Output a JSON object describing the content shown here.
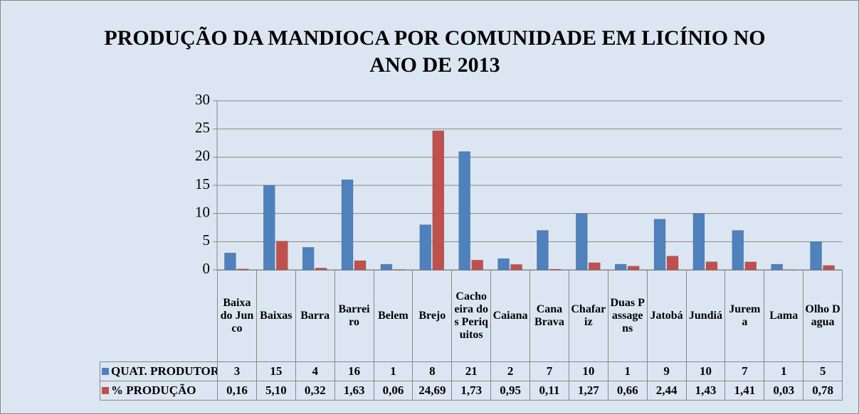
{
  "chart_data": {
    "type": "bar",
    "title": "PRODUÇÃO DA MANDIOCA POR COMUNIDADE EM LICÍNIO NO ANO DE 2013",
    "categories": [
      "Baixa do Junco",
      "Baixas",
      "Barra",
      "Barreiro",
      "Belem",
      "Brejo",
      "Cachoeira dos Periquitos",
      "Caiana",
      "Cana Brava",
      "Chafariz",
      "Duas Passagens",
      "Jatobá",
      "Jundiá",
      "Jurema",
      "Lama",
      "Olho Dagua"
    ],
    "series": [
      {
        "name": "QUAT. PRODUTORES",
        "color": "#4f81bd",
        "values": [
          3,
          15,
          4,
          16,
          1,
          8,
          21,
          2,
          7,
          10,
          1,
          9,
          10,
          7,
          1,
          5
        ]
      },
      {
        "name": "% PRODUÇÃO",
        "color": "#c0504d",
        "values": [
          0.16,
          5.1,
          0.32,
          1.63,
          0.06,
          24.69,
          1.73,
          0.95,
          0.11,
          1.27,
          0.66,
          2.44,
          1.43,
          1.41,
          0.03,
          0.78
        ],
        "value_labels": [
          "0,16",
          "5,10",
          "0,32",
          "1,63",
          "0,06",
          "24,69",
          "1,73",
          "0,95",
          "0,11",
          "1,27",
          "0,66",
          "2,44",
          "1,43",
          "1,41",
          "0,03",
          "0,78"
        ]
      }
    ],
    "ylim": [
      0,
      30
    ],
    "yticks": [
      0,
      5,
      10,
      15,
      20,
      25,
      30
    ],
    "grid": true
  }
}
